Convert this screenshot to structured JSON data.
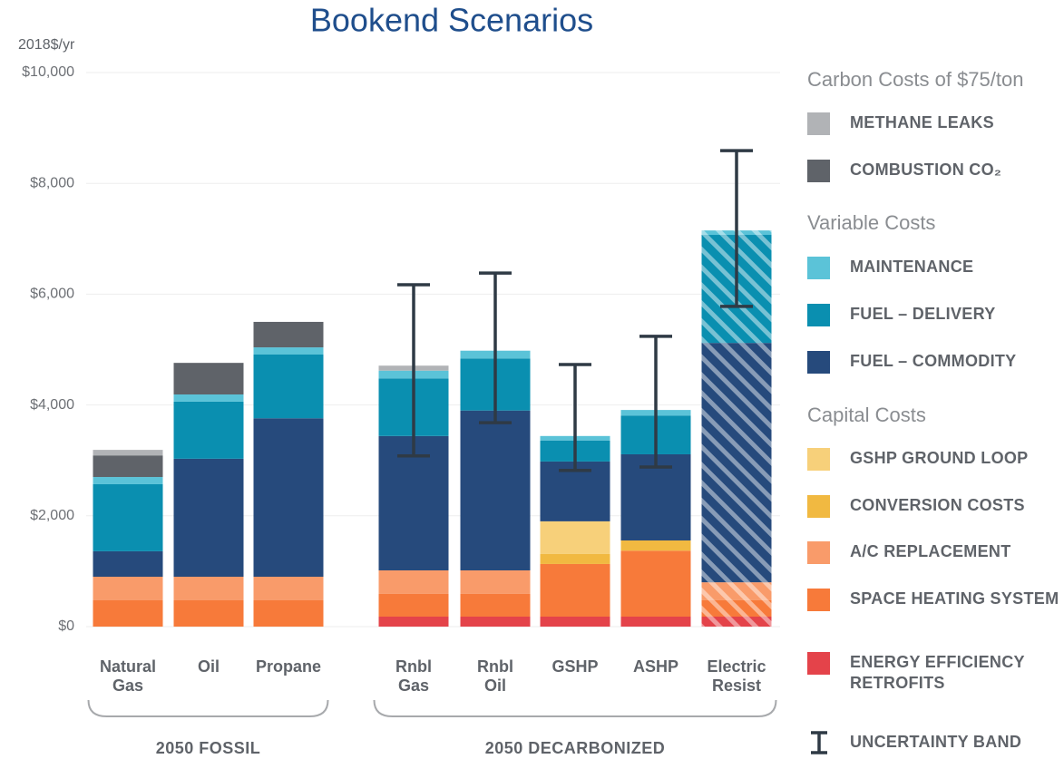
{
  "chart_data": {
    "type": "stacked_bar",
    "title": "Bookend Scenarios",
    "y_label": "2018$/yr",
    "categories": [
      "Natural Gas",
      "Oil",
      "Propane",
      "Rnbl Gas",
      "Rnbl Oil",
      "GSHP",
      "ASHP",
      "Electric Resist"
    ],
    "hatched": [
      false,
      false,
      false,
      false,
      false,
      false,
      false,
      true
    ],
    "groups": [
      {
        "label": "2050 FOSSIL"
      },
      {
        "label": "2050 DECARBONIZED"
      }
    ],
    "ylim": [
      0,
      10000
    ],
    "yticks": [
      {
        "value": 0,
        "label": "$0"
      },
      {
        "value": 2000,
        "label": "$2,000"
      },
      {
        "value": 4000,
        "label": "$4,000"
      },
      {
        "value": 6000,
        "label": "$6,000"
      },
      {
        "value": 8000,
        "label": "$8,000"
      },
      {
        "value": 10000,
        "label": "$10,000"
      }
    ],
    "grid": true,
    "series_groups": [
      {
        "title": "Carbon Costs of $75/ton",
        "series": [
          {
            "name": "METHANE LEAKS",
            "color": "#b1b3b6",
            "values": [
              100,
              0,
              0,
              90,
              0,
              0,
              0,
              0
            ]
          },
          {
            "name": "COMBUSTION CO₂",
            "color": "#5f6369",
            "values": [
              390,
              570,
              460,
              0,
              0,
              0,
              0,
              0
            ]
          }
        ]
      },
      {
        "title": "Variable Costs",
        "series": [
          {
            "name": "MAINTENANCE",
            "color": "#5bc3d8",
            "values": [
              130,
              130,
              130,
              140,
              140,
              80,
              100,
              80
            ]
          },
          {
            "name": "FUEL – DELIVERY",
            "color": "#0a8fb0",
            "values": [
              1210,
              1030,
              1150,
              1040,
              940,
              380,
              700,
              1950
            ]
          },
          {
            "name": "FUEL – COMMODITY",
            "color": "#264a7c",
            "values": [
              460,
              2130,
              2860,
              2425,
              2885,
              1080,
              1555,
              4320
            ]
          }
        ]
      },
      {
        "title": "Capital Costs",
        "series": [
          {
            "name": "GSHP GROUND LOOP",
            "color": "#f7d07a",
            "values": [
              0,
              0,
              0,
              0,
              0,
              590,
              0,
              0
            ]
          },
          {
            "name": "CONVERSION COSTS",
            "color": "#f1b941",
            "values": [
              0,
              0,
              0,
              0,
              0,
              180,
              185,
              0
            ]
          },
          {
            "name": "A/C REPLACEMENT",
            "color": "#f99b6a",
            "values": [
              425,
              425,
              425,
              425,
              425,
              0,
              0,
              325
            ]
          },
          {
            "name": "SPACE HEATING SYSTEM",
            "color": "#f77a3a",
            "values": [
              475,
              475,
              475,
              410,
              410,
              950,
              1190,
              295
            ]
          },
          {
            "name": "ENERGY EFFICIENCY RETROFITS",
            "color": "#e4434a",
            "values": [
              0,
              0,
              0,
              180,
              180,
              180,
              180,
              180
            ]
          }
        ]
      }
    ],
    "error_bars": {
      "name": "UNCERTAINTY BAND",
      "color": "#2f3a45",
      "low": [
        null,
        null,
        null,
        3080,
        3680,
        2820,
        2880,
        5780
      ],
      "high": [
        null,
        null,
        null,
        6170,
        6380,
        4730,
        5240,
        8590
      ]
    }
  }
}
